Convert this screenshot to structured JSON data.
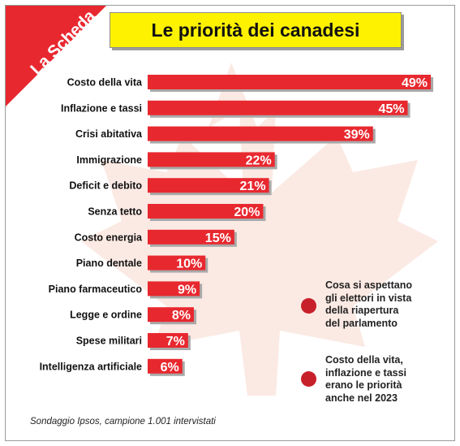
{
  "brand": {
    "label": "La Scheda"
  },
  "colors": {
    "bar": "#e8282f",
    "corner": "#e8282f",
    "title_bg": "#fff200",
    "dot": "#c8202a",
    "maple": "#fbe9e3"
  },
  "chart_data": {
    "type": "bar",
    "orientation": "horizontal",
    "title": "Le priorità dei canadesi",
    "categories": [
      "Costo della vita",
      "Inflazione e tassi",
      "Crisi abitativa",
      "Immigrazione",
      "Deficit e debito",
      "Senza tetto",
      "Costo energia",
      "Piano dentale",
      "Piano farmaceutico",
      "Legge e ordine",
      "Spese militari",
      "Intelligenza artificiale"
    ],
    "values": [
      49,
      45,
      39,
      22,
      21,
      20,
      15,
      10,
      9,
      8,
      7,
      6
    ],
    "value_labels": [
      "49%",
      "45%",
      "39%",
      "22%",
      "21%",
      "20%",
      "15%",
      "10%",
      "9%",
      "8%",
      "7%",
      "6%"
    ],
    "unit": "%",
    "xlim": [
      0,
      49
    ],
    "grid": false,
    "legend": "none"
  },
  "notes": [
    {
      "text_lines": [
        "Cosa si aspettano",
        "gli elettori in vista",
        "della riapertura",
        "del parlamento"
      ]
    },
    {
      "text_lines": [
        "Costo della vita,",
        "inflazione e tassi",
        "erano le priorità",
        "anche nel 2023"
      ]
    }
  ],
  "source": "Sondaggio Ipsos, campione 1.001 intervistati"
}
